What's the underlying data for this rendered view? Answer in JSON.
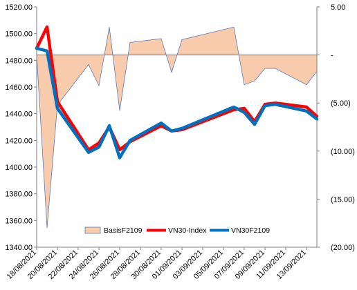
{
  "chart_data": {
    "type": "line",
    "title": "",
    "xlabel": "",
    "ylabel": "",
    "x": [
      "18/08/2021",
      "19/08/2021",
      "20/08/2021",
      "23/08/2021",
      "24/08/2021",
      "25/08/2021",
      "26/08/2021",
      "27/08/2021",
      "30/08/2021",
      "31/08/2021",
      "01/09/2021",
      "06/09/2021",
      "07/09/2021",
      "08/09/2021",
      "09/09/2021",
      "10/09/2021",
      "13/09/2021",
      "14/09/2021"
    ],
    "x_tick_labels": [
      "18/08/2021",
      "20/08/2021",
      "22/08/2021",
      "24/08/2021",
      "26/08/2021",
      "28/08/2021",
      "30/08/2021",
      "01/09/2021",
      "03/09/2021",
      "05/09/2021",
      "07/09/2021",
      "09/09/2021",
      "11/09/2021",
      "13/09/2021"
    ],
    "x_range": [
      "2021-08-18",
      "2021-09-14"
    ],
    "y_left_lim": [
      1340,
      1520
    ],
    "y_left_ticks": [
      "1340.00",
      "1360.00",
      "1380.00",
      "1400.00",
      "1420.00",
      "1440.00",
      "1460.00",
      "1480.00",
      "1500.00",
      "1520.00"
    ],
    "y_right_lim": [
      -20,
      5
    ],
    "y_right_ticks": [
      "5.00",
      "-",
      "(5.00)",
      "(10.00)",
      "(15.00)",
      "(20.00)"
    ],
    "grid": false,
    "legend_position": "bottom-center",
    "series": [
      {
        "name": "BasisF2109",
        "kind": "area",
        "axis": "right",
        "color_fill": "#f8cbad",
        "color_line": "#5b7bb5",
        "values": [
          0,
          -18,
          -5.2,
          -1,
          -3.2,
          2.9,
          -5.8,
          1.3,
          1.7,
          -1.8,
          1.6,
          2.9,
          -3.1,
          -2.7,
          -1.4,
          -1.4,
          -3.1,
          -1.7
        ]
      },
      {
        "name": "VN30-Index",
        "kind": "line",
        "axis": "left",
        "color": "#ff0000",
        "values": [
          1489,
          1505,
          1449,
          1413,
          1418,
          1430,
          1413,
          1419,
          1431,
          1427,
          1428,
          1443,
          1444,
          1434,
          1447,
          1448,
          1445,
          1438
        ]
      },
      {
        "name": "VN30F2109",
        "kind": "line",
        "axis": "left",
        "color": "#0070c0",
        "values": [
          1489,
          1487,
          1444,
          1411,
          1415,
          1431,
          1407,
          1420,
          1433,
          1427,
          1429,
          1445,
          1441,
          1432,
          1446,
          1447,
          1442,
          1436
        ]
      }
    ]
  }
}
